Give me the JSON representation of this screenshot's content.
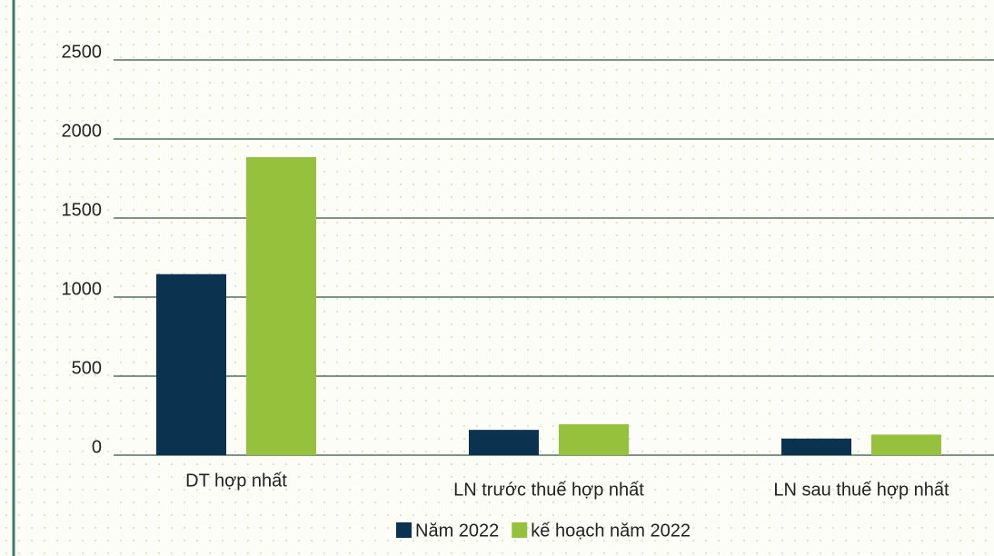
{
  "chart_data": {
    "type": "bar",
    "categories": [
      "DT hợp nhất",
      "LN trước thuế hợp nhất",
      "LN sau thuế hợp nhất"
    ],
    "series": [
      {
        "name": "Năm 2022",
        "color": "#0b3350",
        "values": [
          1145,
          160,
          105
        ]
      },
      {
        "name": "kế hoạch năm 2022",
        "color": "#95c13d",
        "values": [
          1885,
          195,
          130
        ]
      }
    ],
    "ylim": [
      0,
      2500
    ],
    "yticks": [
      0,
      500,
      1000,
      1500,
      2000,
      2500
    ],
    "grid": true,
    "legend": "bottom"
  }
}
